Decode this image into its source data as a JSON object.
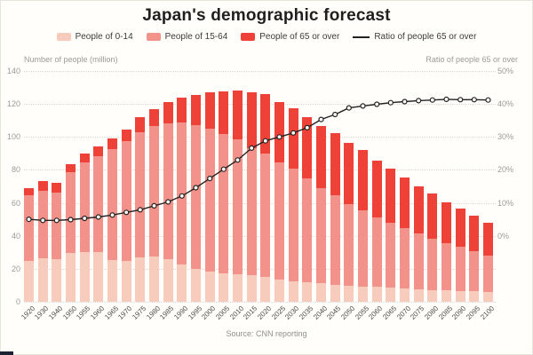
{
  "chart_data": {
    "type": "bar",
    "stacked": true,
    "title": "Japan's demographic forecast",
    "categories": [
      1920,
      1930,
      1940,
      1950,
      1955,
      1960,
      1965,
      1970,
      1975,
      1980,
      1985,
      1990,
      1995,
      2000,
      2005,
      2010,
      2015,
      2020,
      2025,
      2030,
      2035,
      2040,
      2045,
      2050,
      2055,
      2060,
      2065,
      2070,
      2075,
      2080,
      2085,
      2090,
      2095,
      2100
    ],
    "series": [
      {
        "name": "People of 0-14",
        "color": "#f7ccbd",
        "values": [
          25,
          26.5,
          26,
          29.5,
          30,
          30,
          25.5,
          25,
          27.2,
          27.5,
          26,
          22.5,
          20,
          18.5,
          17.5,
          16.8,
          15.9,
          15,
          13.6,
          12.6,
          11.6,
          11.1,
          10.5,
          9.9,
          9.4,
          8.9,
          8.4,
          8,
          7.6,
          7.2,
          6.9,
          6.6,
          6.3,
          6
        ]
      },
      {
        "name": "People of 15-64",
        "color": "#f2928b",
        "values": [
          39.5,
          41,
          40.5,
          49,
          54.5,
          58.5,
          67.3,
          72.3,
          75.8,
          79,
          82.5,
          86.2,
          87.3,
          86.4,
          84.5,
          81.8,
          77.3,
          74.9,
          71.2,
          68.3,
          63.5,
          58,
          54.2,
          49.1,
          46.3,
          42.5,
          39.8,
          36.7,
          33.7,
          31.3,
          28.6,
          26.6,
          24.3,
          22.2
        ]
      },
      {
        "name": "People of 65 or over",
        "color": "#ee4137",
        "values": [
          4.5,
          5.5,
          5.5,
          5,
          5.5,
          5.7,
          6.2,
          7.3,
          8.9,
          10.6,
          12.5,
          14.9,
          18.3,
          22,
          25.8,
          29.5,
          33.9,
          36.2,
          36.4,
          36.7,
          36.7,
          37.7,
          37.6,
          37.4,
          36.2,
          34.2,
          32.6,
          30.7,
          28.7,
          27,
          25,
          23.3,
          21.5,
          19.7
        ]
      }
    ],
    "line": {
      "name": "Ratio of people 65 or over",
      "color": "#222222",
      "axis": "right",
      "marker": "open-circle",
      "values": [
        5,
        4.7,
        4.7,
        4.9,
        5.3,
        5.7,
        6.3,
        7.1,
        7.9,
        9.1,
        10.3,
        12.1,
        14.6,
        17.4,
        20.2,
        23,
        26.6,
        28.8,
        30,
        31.2,
        32.8,
        35.3,
        36.8,
        38.8,
        39.4,
        39.9,
        40.4,
        40.7,
        41,
        41.2,
        41.4,
        41.3,
        41.3,
        41.2
      ]
    },
    "left_axis": {
      "label": "Number of people (million)",
      "max": 140,
      "ticks": [
        140,
        120,
        100,
        80,
        60,
        40,
        20,
        0
      ]
    },
    "right_axis": {
      "label": "Ratio of people 65 or over",
      "tick_labels": [
        "50%",
        "40%",
        "30%",
        "20%",
        "10%",
        "0%"
      ],
      "percent_zero_at_left_units": 40,
      "left_units_per_percent": 2
    },
    "legend_position": "top",
    "grid": "horizontal-dotted"
  },
  "footer": {
    "source": "Source: CNN reporting"
  }
}
